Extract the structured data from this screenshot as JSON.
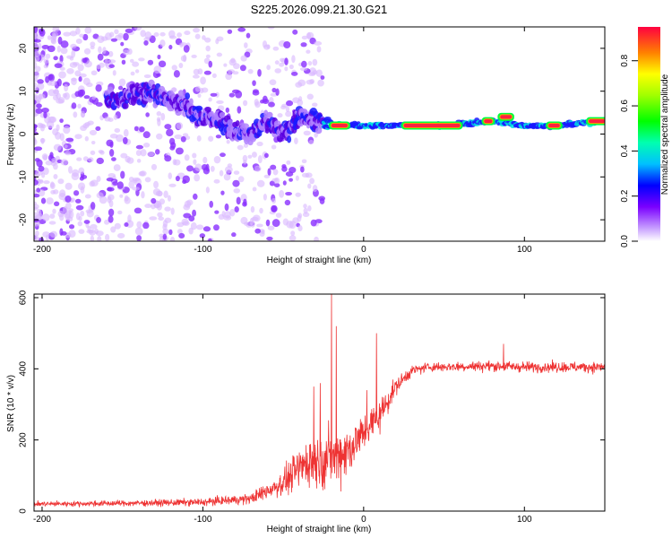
{
  "chart_data": [
    {
      "type": "heatmap",
      "title": "S225.2026.099.21.30.G21",
      "xlabel": "Height of straight line (km)",
      "ylabel": "Frequency (Hz)",
      "xlim": [
        -205,
        150
      ],
      "ylim": [
        -25,
        25
      ],
      "x_ticks": [
        -200,
        -100,
        0,
        100
      ],
      "x_tick_labels": [
        "-200",
        "-100",
        "0",
        "100"
      ],
      "y_ticks": [
        20,
        10,
        0,
        -10,
        -20
      ],
      "y_tick_labels": [
        "20",
        "10",
        "0",
        "-10",
        "-20"
      ],
      "colorbar": {
        "label": "Normalized spectral amplitude",
        "range": [
          0,
          0.95
        ],
        "ticks": [
          0.0,
          0.2,
          0.4,
          0.6,
          0.8
        ],
        "tick_labels": [
          "0.0",
          "0.2",
          "0.4",
          "0.6",
          "0.8"
        ]
      },
      "ridge": [
        {
          "x": -150,
          "y": 8
        },
        {
          "x": -140,
          "y": 10
        },
        {
          "x": -125,
          "y": 9
        },
        {
          "x": -110,
          "y": 6
        },
        {
          "x": -100,
          "y": 4
        },
        {
          "x": -90,
          "y": 3
        },
        {
          "x": -80,
          "y": 1
        },
        {
          "x": -70,
          "y": 0
        },
        {
          "x": -60,
          "y": 3
        },
        {
          "x": -50,
          "y": 0
        },
        {
          "x": -40,
          "y": 4
        },
        {
          "x": -30,
          "y": 3
        },
        {
          "x": -20,
          "y": 2
        },
        {
          "x": 0,
          "y": 2
        },
        {
          "x": 20,
          "y": 2
        },
        {
          "x": 50,
          "y": 2
        },
        {
          "x": 80,
          "y": 3
        },
        {
          "x": 100,
          "y": 2
        },
        {
          "x": 120,
          "y": 2
        },
        {
          "x": 150,
          "y": 3
        }
      ],
      "strong_segments": [
        {
          "x_start": -20,
          "x_end": -10,
          "y": 2
        },
        {
          "x_start": 25,
          "x_end": 60,
          "y": 2
        },
        {
          "x_start": 75,
          "x_end": 80,
          "y": 3
        },
        {
          "x_start": 85,
          "x_end": 92,
          "y": 4
        },
        {
          "x_start": 115,
          "x_end": 122,
          "y": 2
        },
        {
          "x_start": 140,
          "x_end": 150,
          "y": 3
        }
      ]
    },
    {
      "type": "line",
      "xlabel": "Height of straight line (km)",
      "ylabel": "SNR (10 * v/v)",
      "xlim": [
        -205,
        150
      ],
      "ylim": [
        0,
        610
      ],
      "x_ticks": [
        -200,
        -100,
        0,
        100
      ],
      "x_tick_labels": [
        "-200",
        "-100",
        "0",
        "100"
      ],
      "y_ticks": [
        0,
        200,
        400,
        600
      ],
      "y_tick_labels": [
        "0",
        "200",
        "400",
        "600"
      ],
      "color": "#ee3333",
      "envelope": [
        {
          "x": -205,
          "mean": 20,
          "noise": 12
        },
        {
          "x": -150,
          "mean": 22,
          "noise": 14
        },
        {
          "x": -100,
          "mean": 25,
          "noise": 18
        },
        {
          "x": -70,
          "mean": 35,
          "noise": 25
        },
        {
          "x": -50,
          "mean": 80,
          "noise": 60
        },
        {
          "x": -35,
          "mean": 140,
          "noise": 120
        },
        {
          "x": -20,
          "mean": 150,
          "noise": 140
        },
        {
          "x": -10,
          "mean": 170,
          "noise": 130
        },
        {
          "x": 0,
          "mean": 220,
          "noise": 90
        },
        {
          "x": 10,
          "mean": 270,
          "noise": 80
        },
        {
          "x": 20,
          "mean": 350,
          "noise": 40
        },
        {
          "x": 30,
          "mean": 395,
          "noise": 25
        },
        {
          "x": 40,
          "mean": 405,
          "noise": 22
        },
        {
          "x": 80,
          "mean": 408,
          "noise": 25
        },
        {
          "x": 100,
          "mean": 405,
          "noise": 25
        },
        {
          "x": 150,
          "mean": 405,
          "noise": 25
        }
      ],
      "spikes": [
        {
          "x": -20,
          "y": 610
        },
        {
          "x": -17,
          "y": 520
        },
        {
          "x": -31,
          "y": 350
        },
        {
          "x": -27,
          "y": 360
        },
        {
          "x": 2,
          "y": 340
        },
        {
          "x": 8,
          "y": 500
        },
        {
          "x": 87,
          "y": 470
        }
      ]
    }
  ]
}
